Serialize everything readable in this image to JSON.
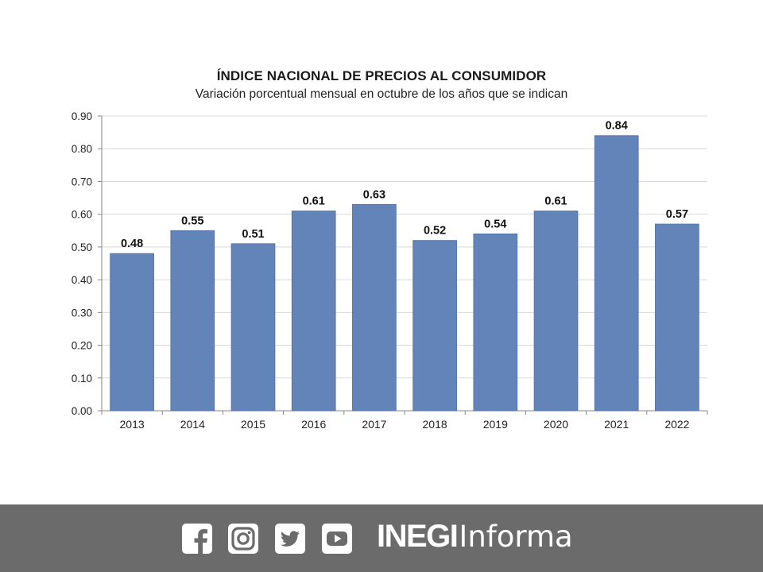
{
  "chart_data": {
    "type": "bar",
    "title": "ÍNDICE NACIONAL DE PRECIOS AL CONSUMIDOR",
    "subtitle": "Variación porcentual mensual en octubre de los años que se indican",
    "categories": [
      "2013",
      "2014",
      "2015",
      "2016",
      "2017",
      "2018",
      "2019",
      "2020",
      "2021",
      "2022"
    ],
    "values": [
      0.48,
      0.55,
      0.51,
      0.61,
      0.63,
      0.52,
      0.54,
      0.61,
      0.84,
      0.57
    ],
    "value_labels": [
      "0.48",
      "0.55",
      "0.51",
      "0.61",
      "0.63",
      "0.52",
      "0.54",
      "0.61",
      "0.84",
      "0.57"
    ],
    "yticks": [
      "0.00",
      "0.10",
      "0.20",
      "0.30",
      "0.40",
      "0.50",
      "0.60",
      "0.70",
      "0.80",
      "0.90"
    ],
    "ylim": [
      0,
      0.9
    ],
    "grid": true,
    "bar_color": "#6384B8"
  },
  "footer": {
    "background": "#6b6b6b",
    "icons": [
      "facebook-icon",
      "instagram-icon",
      "twitter-icon",
      "youtube-icon"
    ],
    "brand_bold": "INEGI",
    "brand_light": "Informa"
  }
}
